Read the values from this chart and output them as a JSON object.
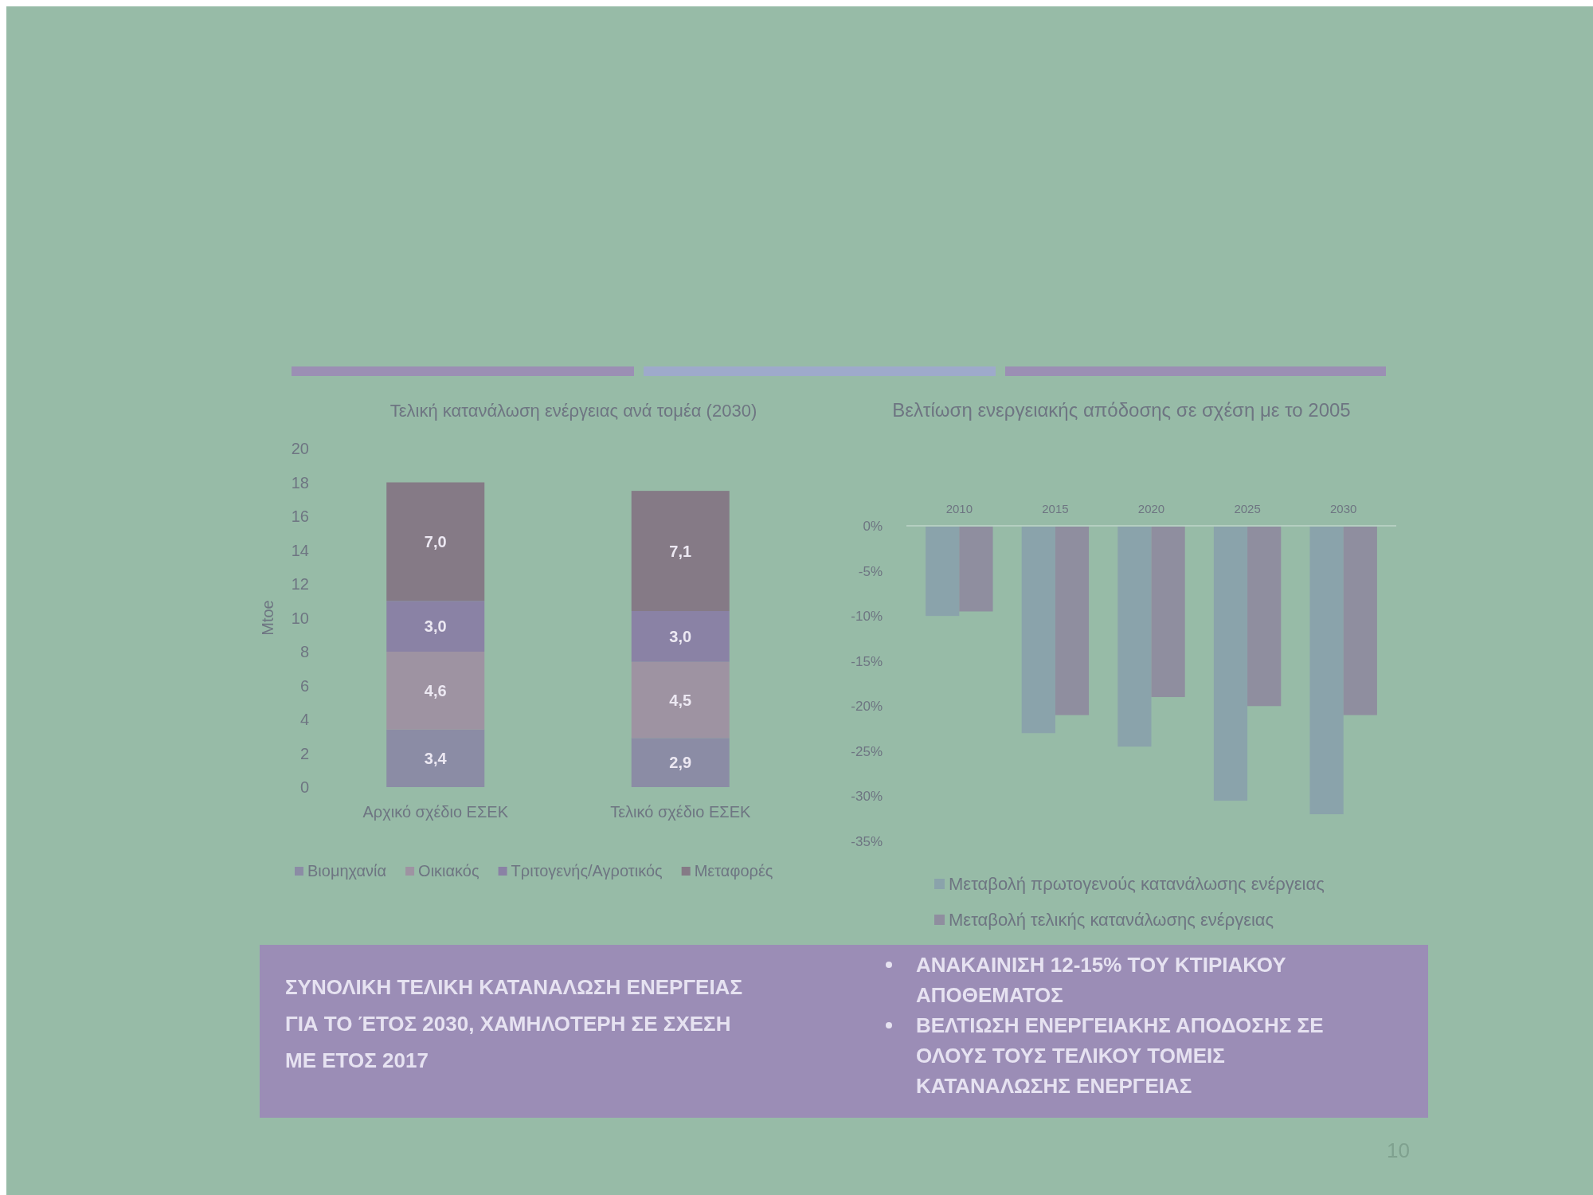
{
  "chart_data": [
    {
      "type": "bar",
      "title": "Τελική κατανάλωση ενέργειας ανά τομέα (2030)",
      "ylabel": "Mtoe",
      "categories": [
        "Αρχικό σχέδιο ΕΣΕΚ",
        "Τελικό σχέδιο ΕΣΕΚ"
      ],
      "stacked": true,
      "series": [
        {
          "name": "Βιομηχανία",
          "color": "#8b8ca5",
          "values": [
            3.4,
            2.9
          ],
          "value_labels": [
            "3,4",
            "2,9"
          ]
        },
        {
          "name": "Οικιακός",
          "color": "#9e93a2",
          "values": [
            4.6,
            4.5
          ],
          "value_labels": [
            "4,6",
            "4,5"
          ]
        },
        {
          "name": "Τριτογενής/Αγροτικός",
          "color": "#8a82a5",
          "values": [
            3.0,
            3.0
          ],
          "value_labels": [
            "3,0",
            "3,0"
          ]
        },
        {
          "name": "Μεταφορές",
          "color": "#857a86",
          "values": [
            7.0,
            7.1
          ],
          "value_labels": [
            "7,0",
            "7,1"
          ]
        }
      ],
      "ylim": [
        0,
        20
      ],
      "yticks": [
        0,
        2,
        4,
        6,
        8,
        10,
        12,
        14,
        16,
        18,
        20
      ],
      "legend": "bottom"
    },
    {
      "type": "bar",
      "title": "Βελτίωση ενεργειακής απόδοσης σε σχέση με το 2005",
      "categories": [
        "2010",
        "2015",
        "2020",
        "2025",
        "2030"
      ],
      "series": [
        {
          "name": "Μεταβολή πρωτογενούς κατανάλωσης ενέργειας",
          "color": "#8aa3ab",
          "values": [
            -10,
            -23,
            -24.5,
            -30.5,
            -32
          ]
        },
        {
          "name": "Μεταβολή τελικής κατανάλωσης ενέργειας",
          "color": "#8f8e9f",
          "values": [
            -9.5,
            -21,
            -19,
            -20,
            -21
          ]
        }
      ],
      "ylim": [
        -35,
        0
      ],
      "yticks": [
        {
          "value": 0,
          "label": "0%"
        },
        {
          "value": -5,
          "label": "-5%"
        },
        {
          "value": -10,
          "label": "-10%"
        },
        {
          "value": -15,
          "label": "-15%"
        },
        {
          "value": -20,
          "label": "-20%"
        },
        {
          "value": -25,
          "label": "-25%"
        },
        {
          "value": -30,
          "label": "-30%"
        },
        {
          "value": -35,
          "label": "-35%"
        }
      ],
      "legend": "bottom"
    },
    {
      "type": "other",
      "annotations": [
        "ΣΥΝΟΛΙΚΗ ΤΕΛΙΚΗ ΚΑΤΑΝΑΛΩΣΗ ΕΝΕΡΓΕΙΑΣ ΓΙΑ ΤΟ ΈΤΟΣ 2030, ΧΑΜΗΛΟΤΕΡΗ ΣΕ ΣΧΕΣΗ ΜΕ ΕΤΟΣ 2017",
        "ΑΝΑΚΑΙΝΙΣΗ 12-15% ΤΟΥ ΚΤΙΡΙΑΚΟΥ ΑΠΟΘΕΜΑΤΟΣ",
        "ΒΕΛΤΙΩΣΗ ΕΝΕΡΓΕΙΑΚΗΣ ΑΠΟΔΟΣΗΣ ΣΕ ΟΛΟΥΣ ΤΟΥΣ ΤΕΛΙΚΟΥ ΤΟΜΕΙΣ ΚΑΤΑΝΑΛΩΣΗΣ ΕΝΕΡΓΕΙΑΣ",
        "10"
      ]
    }
  ]
}
